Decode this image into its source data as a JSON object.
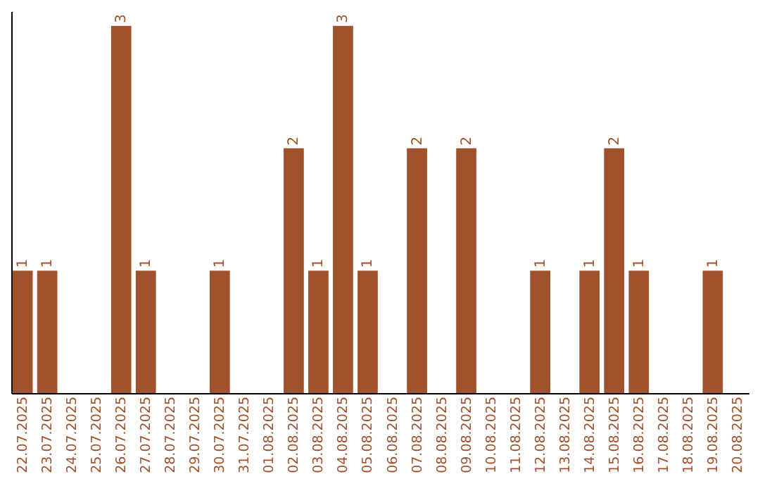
{
  "chart_data": {
    "type": "bar",
    "categories": [
      "22.07.2025",
      "23.07.2025",
      "24.07.2025",
      "25.07.2025",
      "26.07.2025",
      "27.07.2025",
      "28.07.2025",
      "29.07.2025",
      "30.07.2025",
      "31.07.2025",
      "01.08.2025",
      "02.08.2025",
      "03.08.2025",
      "04.08.2025",
      "05.08.2025",
      "06.08.2025",
      "07.08.2025",
      "08.08.2025",
      "09.08.2025",
      "10.08.2025",
      "11.08.2025",
      "12.08.2025",
      "13.08.2025",
      "14.08.2025",
      "15.08.2025",
      "16.08.2025",
      "17.08.2025",
      "18.08.2025",
      "19.08.2025",
      "20.08.2025"
    ],
    "values": [
      1,
      1,
      0,
      0,
      3,
      1,
      0,
      0,
      1,
      0,
      0,
      2,
      1,
      3,
      1,
      0,
      2,
      0,
      2,
      0,
      0,
      1,
      0,
      1,
      2,
      1,
      0,
      0,
      1,
      0
    ],
    "value_labels": [
      "1",
      "1",
      null,
      null,
      "3",
      "1",
      null,
      null,
      "1",
      null,
      null,
      "2",
      "1",
      "3",
      "1",
      null,
      "2",
      null,
      "2",
      null,
      null,
      "1",
      null,
      "1",
      "2",
      "1",
      null,
      null,
      "1",
      null
    ],
    "color": "#a0522d",
    "grid": false
  }
}
